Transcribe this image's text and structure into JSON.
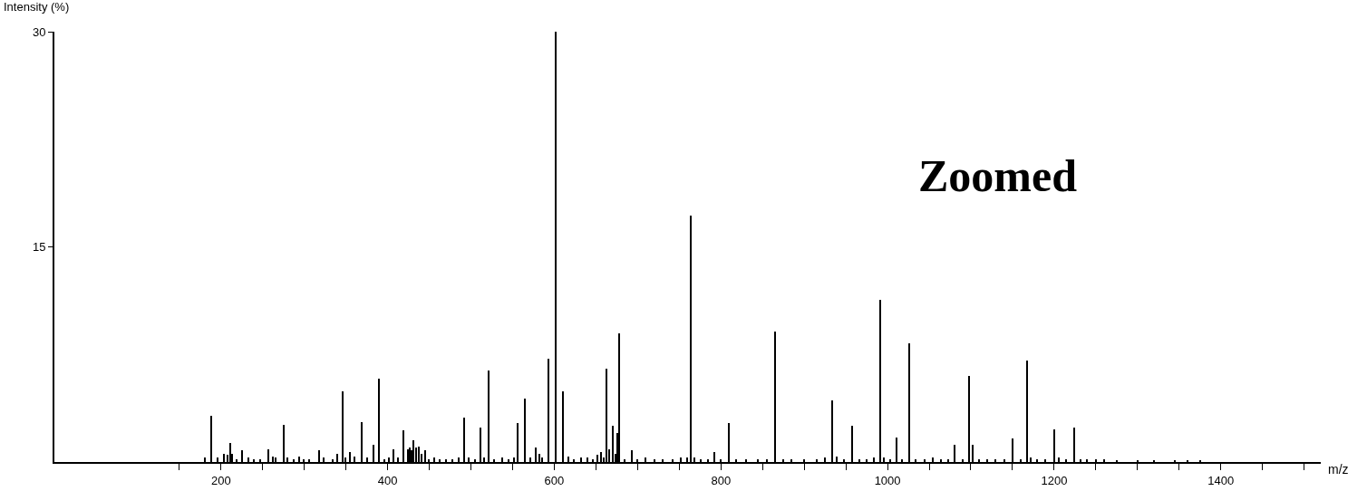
{
  "chart_data": {
    "type": "bar",
    "xlabel": "m/z",
    "ylabel": "Intensity (%)",
    "annotations": [
      "Zoomed"
    ],
    "color": "#000000",
    "grid": false,
    "legend": false,
    "x": [
      181,
      189,
      196,
      204,
      208,
      211,
      214,
      219,
      226,
      233,
      240,
      247,
      257,
      262,
      266,
      276,
      280,
      287,
      294,
      300,
      306,
      318,
      323,
      334,
      340,
      346,
      350,
      355,
      360,
      369,
      376,
      383,
      390,
      396,
      402,
      407,
      413,
      419,
      425,
      427,
      429,
      431,
      434,
      438,
      441,
      445,
      450,
      456,
      463,
      470,
      478,
      485,
      492,
      497,
      505,
      512,
      516,
      521,
      528,
      538,
      545,
      552,
      556,
      565,
      572,
      578,
      582,
      586,
      593,
      602,
      611,
      617,
      624,
      632,
      640,
      647,
      652,
      656,
      660,
      663,
      666,
      670,
      674,
      676,
      678,
      685,
      693,
      700,
      710,
      720,
      730,
      742,
      752,
      760,
      764,
      768,
      776,
      785,
      792,
      800,
      810,
      818,
      830,
      845,
      855,
      865,
      875,
      885,
      900,
      915,
      925,
      934,
      939,
      948,
      958,
      966,
      975,
      984,
      991,
      996,
      1003,
      1011,
      1018,
      1026,
      1034,
      1045,
      1055,
      1064,
      1073,
      1081,
      1090,
      1098,
      1102,
      1110,
      1120,
      1130,
      1141,
      1150,
      1160,
      1168,
      1172,
      1180,
      1190,
      1200,
      1206,
      1215,
      1224,
      1232,
      1240,
      1250,
      1260,
      1275,
      1300,
      1320,
      1345,
      1360,
      1375
    ],
    "values": [
      0.3,
      3.2,
      0.3,
      0.6,
      0.5,
      1.3,
      0.6,
      0.2,
      0.8,
      0.3,
      0.2,
      0.2,
      0.9,
      0.4,
      0.3,
      2.6,
      0.3,
      0.2,
      0.4,
      0.2,
      0.2,
      0.8,
      0.3,
      0.2,
      0.6,
      4.9,
      0.3,
      0.7,
      0.4,
      2.8,
      0.3,
      1.2,
      5.8,
      0.2,
      0.3,
      0.9,
      0.3,
      2.2,
      0.9,
      1.0,
      0.8,
      1.5,
      1.0,
      1.1,
      0.6,
      0.8,
      0.2,
      0.3,
      0.2,
      0.2,
      0.2,
      0.3,
      3.1,
      0.3,
      0.2,
      2.4,
      0.3,
      6.4,
      0.2,
      0.3,
      0.2,
      0.3,
      2.7,
      4.4,
      0.3,
      1.0,
      0.6,
      0.3,
      7.2,
      30.0,
      4.9,
      0.4,
      0.2,
      0.3,
      0.3,
      0.2,
      0.5,
      0.7,
      0.3,
      6.5,
      0.9,
      2.5,
      0.6,
      2.0,
      9.0,
      0.2,
      0.8,
      0.2,
      0.3,
      0.2,
      0.2,
      0.2,
      0.3,
      0.3,
      17.2,
      0.3,
      0.2,
      0.2,
      0.7,
      0.2,
      2.7,
      0.2,
      0.2,
      0.2,
      0.2,
      9.1,
      0.2,
      0.2,
      0.2,
      0.2,
      0.3,
      4.3,
      0.4,
      0.2,
      2.5,
      0.2,
      0.2,
      0.3,
      11.3,
      0.3,
      0.2,
      1.7,
      0.2,
      8.3,
      0.2,
      0.2,
      0.3,
      0.2,
      0.2,
      1.2,
      0.2,
      6.0,
      1.2,
      0.2,
      0.2,
      0.2,
      0.2,
      1.65,
      0.2,
      7.1,
      0.3,
      0.2,
      0.2,
      2.3,
      0.3,
      0.2,
      2.4,
      0.2,
      0.2,
      0.2,
      0.2,
      0.1,
      0.1,
      0.1,
      0.1,
      0.1,
      0.1
    ],
    "xlim": [
      0,
      1520
    ],
    "ylim": [
      0,
      30
    ],
    "xticks": [
      {
        "value": 150,
        "label": null
      },
      200,
      {
        "value": 250,
        "label": null
      },
      {
        "value": 300,
        "label": null
      },
      {
        "value": 350,
        "label": null
      },
      400,
      {
        "value": 450,
        "label": null
      },
      {
        "value": 500,
        "label": null
      },
      {
        "value": 550,
        "label": null
      },
      600,
      {
        "value": 650,
        "label": null
      },
      {
        "value": 700,
        "label": null
      },
      {
        "value": 750,
        "label": null
      },
      800,
      {
        "value": 850,
        "label": null
      },
      {
        "value": 900,
        "label": null
      },
      {
        "value": 950,
        "label": null
      },
      1000,
      {
        "value": 1050,
        "label": null
      },
      {
        "value": 1100,
        "label": null
      },
      {
        "value": 1150,
        "label": null
      },
      1200,
      {
        "value": 1250,
        "label": null
      },
      {
        "value": 1300,
        "label": null
      },
      {
        "value": 1350,
        "label": null
      },
      1400,
      {
        "value": 1450,
        "label": null
      },
      {
        "value": 1500,
        "label": null
      }
    ],
    "yticks": [
      15,
      30
    ]
  }
}
